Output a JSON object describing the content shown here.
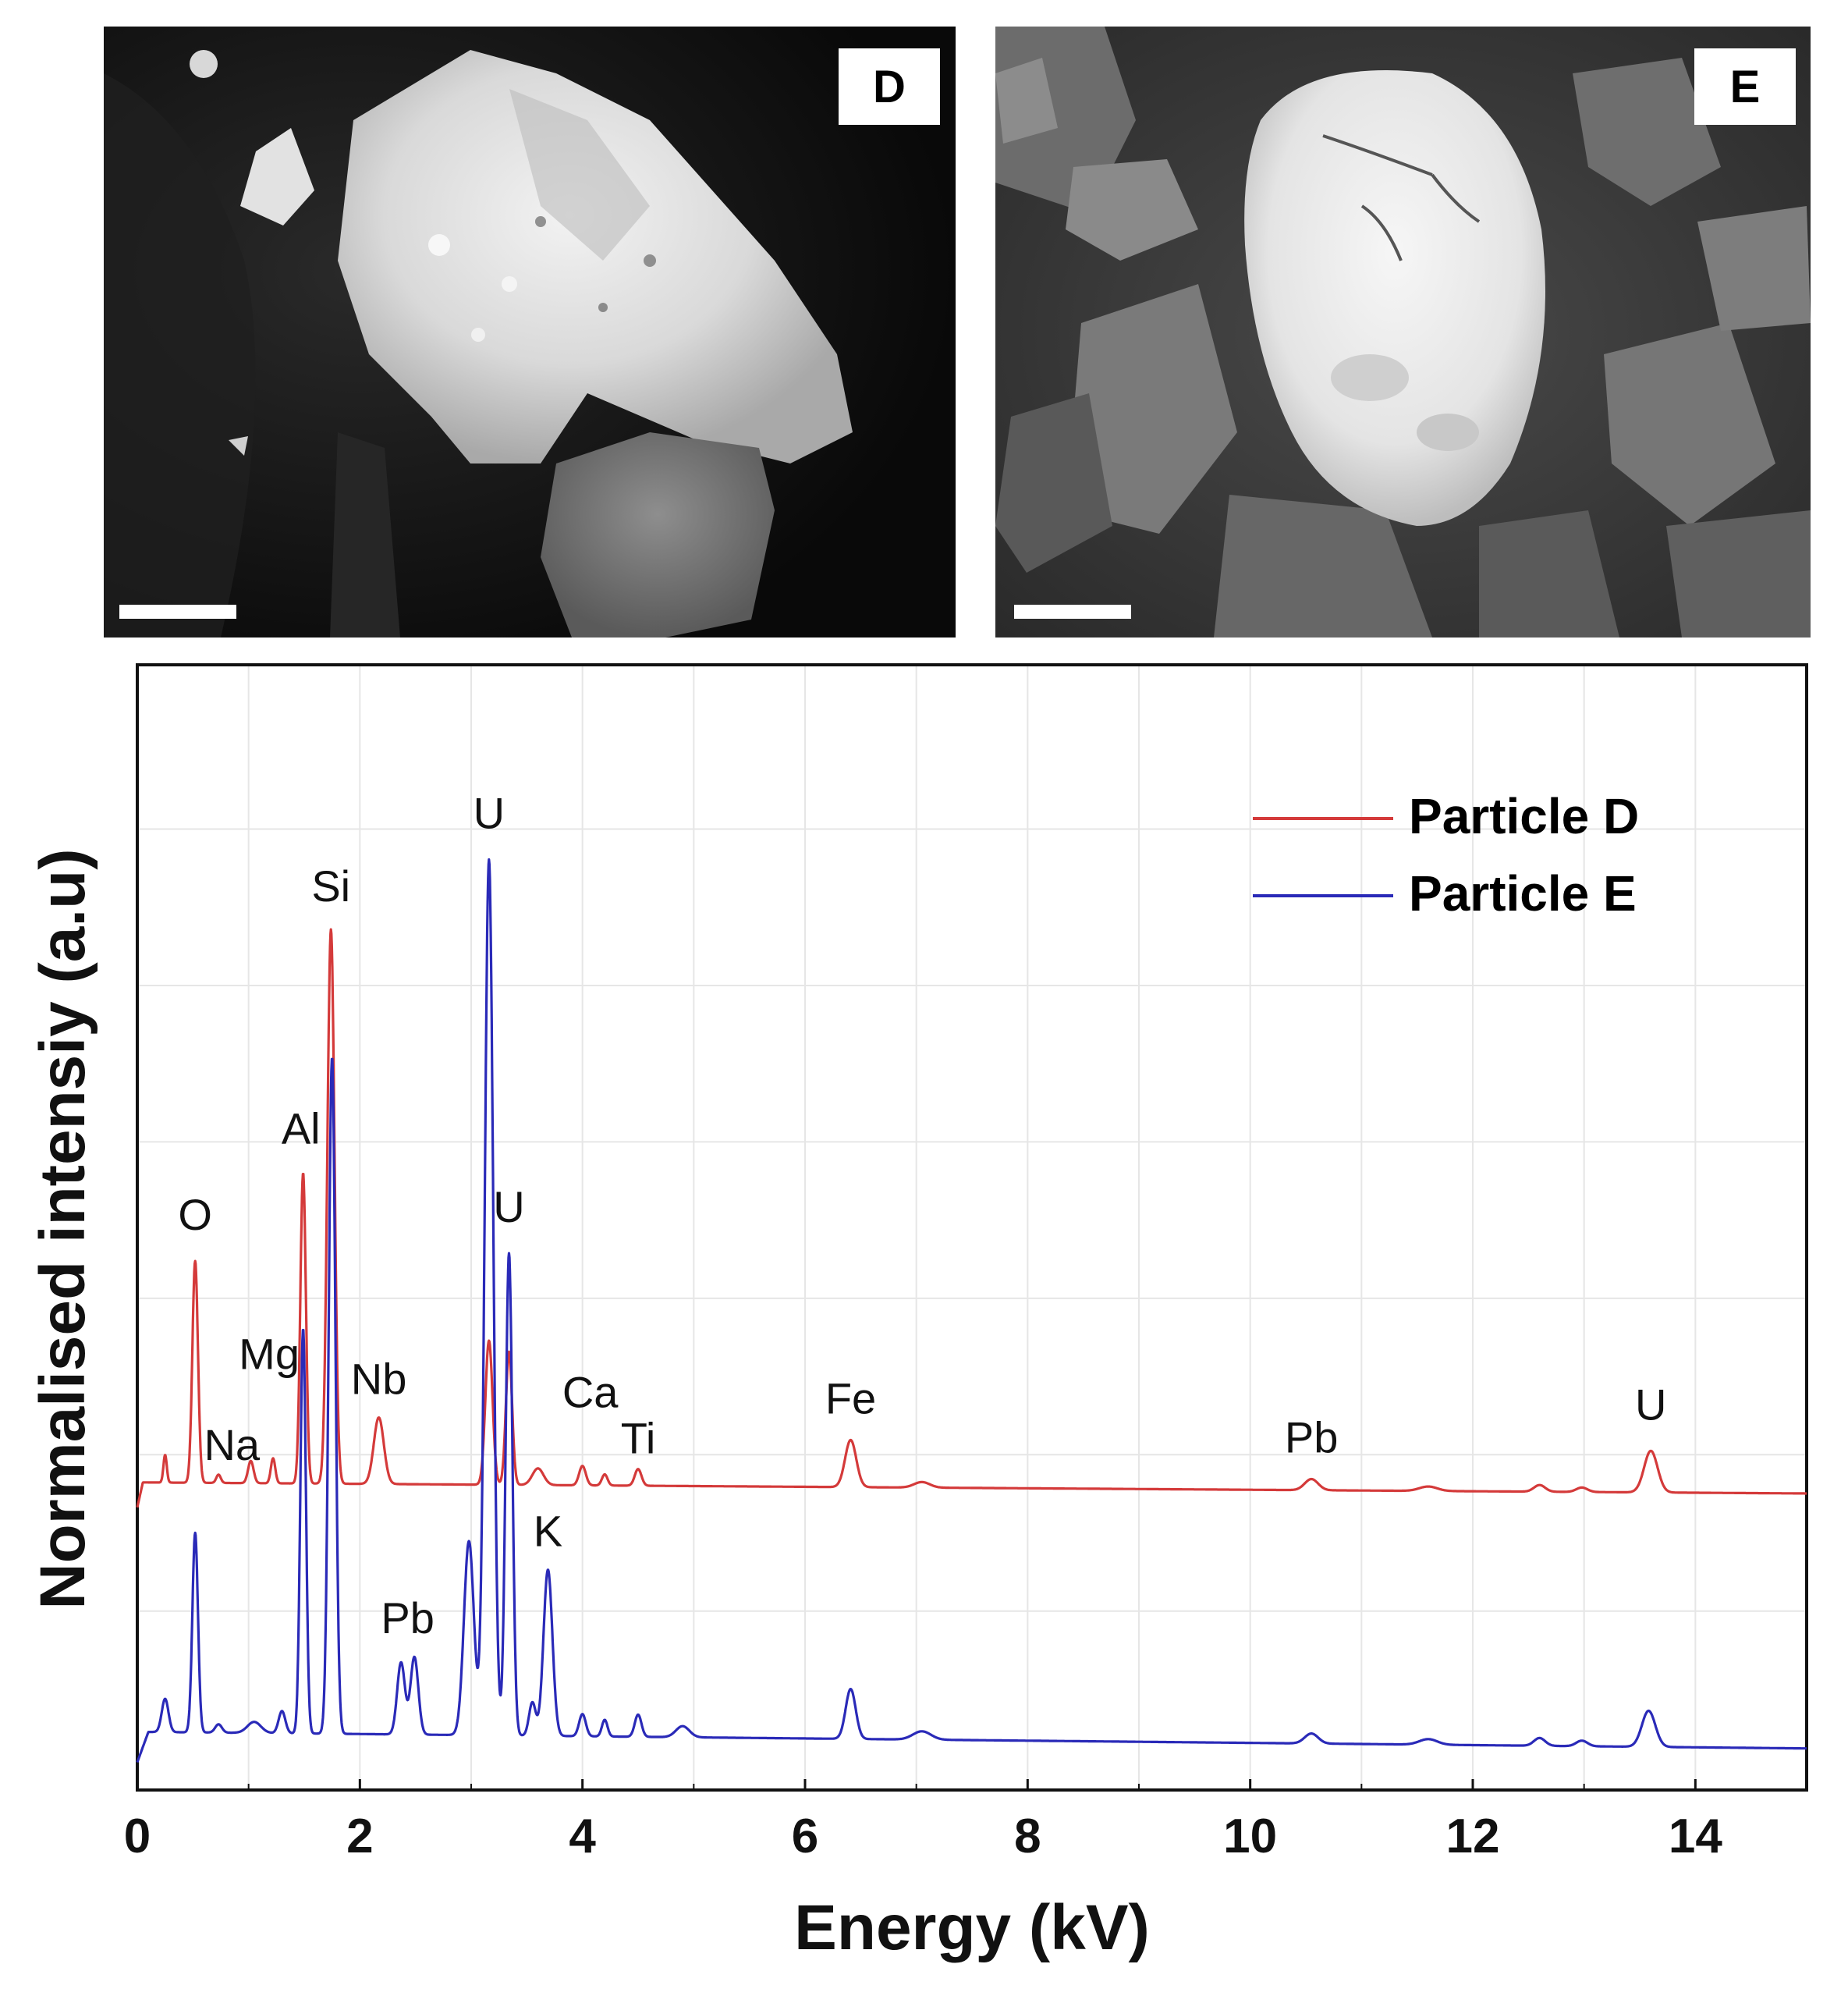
{
  "images": [
    {
      "panel_label": "D",
      "description": "SEM image of particle D with scale bar"
    },
    {
      "panel_label": "E",
      "description": "SEM image of particle E with scale bar"
    }
  ],
  "chart_data": {
    "type": "line",
    "title": "",
    "xlabel": "Energy (kV)",
    "ylabel": "Normalised intensiy (a.u)",
    "xlim": [
      0,
      15
    ],
    "x_ticks": [
      "0",
      "2",
      "4",
      "6",
      "8",
      "10",
      "12",
      "14"
    ],
    "x_tick_values": [
      0,
      2,
      4,
      6,
      8,
      10,
      12,
      14
    ],
    "y_tick_labels_shown": false,
    "grid": true,
    "legend_position": "top-right",
    "colors": {
      "particle_d": "#d43a3a",
      "particle_e": "#2a2ab8"
    },
    "series": [
      {
        "name": "Particle D",
        "key": "particle_d",
        "baseline": 0.045,
        "baseline_end": 0.025,
        "onset": 0.05,
        "peaks": [
          [
            0.25,
            0.05,
            0.015
          ],
          [
            0.52,
            0.4,
            0.025
          ],
          [
            0.73,
            0.015,
            0.02
          ],
          [
            1.02,
            0.04,
            0.025
          ],
          [
            1.22,
            0.045,
            0.02
          ],
          [
            1.49,
            0.56,
            0.025
          ],
          [
            1.74,
            1.0,
            0.032
          ],
          [
            2.17,
            0.12,
            0.045
          ],
          [
            3.16,
            0.26,
            0.032
          ],
          [
            3.34,
            0.24,
            0.028
          ],
          [
            3.6,
            0.03,
            0.05
          ],
          [
            4.0,
            0.035,
            0.03
          ],
          [
            4.2,
            0.02,
            0.025
          ],
          [
            4.5,
            0.03,
            0.03
          ],
          [
            6.41,
            0.085,
            0.05
          ],
          [
            7.05,
            0.01,
            0.07
          ],
          [
            10.55,
            0.02,
            0.06
          ],
          [
            11.6,
            0.008,
            0.08
          ],
          [
            12.6,
            0.012,
            0.05
          ],
          [
            12.98,
            0.008,
            0.05
          ],
          [
            13.6,
            0.075,
            0.06
          ]
        ],
        "label_values": {
          "U_3.16": 0.26,
          "U_13.6": 0.075
        }
      },
      {
        "name": "Particle E",
        "key": "particle_e",
        "baseline": 0.055,
        "baseline_end": 0.025,
        "onset": 0.1,
        "peaks": [
          [
            0.25,
            0.06,
            0.03
          ],
          [
            0.52,
            0.36,
            0.025
          ],
          [
            0.73,
            0.015,
            0.03
          ],
          [
            1.05,
            0.02,
            0.06
          ],
          [
            1.3,
            0.04,
            0.03
          ],
          [
            1.49,
            0.73,
            0.025
          ],
          [
            1.75,
            1.22,
            0.03
          ],
          [
            2.37,
            0.13,
            0.035
          ],
          [
            2.49,
            0.14,
            0.035
          ],
          [
            2.98,
            0.35,
            0.045
          ],
          [
            3.16,
            1.58,
            0.038
          ],
          [
            3.34,
            0.87,
            0.03
          ],
          [
            3.55,
            0.06,
            0.03
          ],
          [
            3.69,
            0.3,
            0.04
          ],
          [
            4.0,
            0.04,
            0.03
          ],
          [
            4.2,
            0.03,
            0.025
          ],
          [
            4.5,
            0.04,
            0.03
          ],
          [
            4.9,
            0.02,
            0.06
          ],
          [
            6.41,
            0.09,
            0.045
          ],
          [
            7.05,
            0.015,
            0.08
          ],
          [
            10.55,
            0.018,
            0.06
          ],
          [
            11.6,
            0.01,
            0.08
          ],
          [
            12.6,
            0.014,
            0.05
          ],
          [
            12.98,
            0.01,
            0.05
          ],
          [
            13.58,
            0.065,
            0.06
          ]
        ]
      }
    ],
    "y_range_display": [
      -0.05,
      1.98
    ],
    "offset_particle_d": 0.46,
    "annotations": [
      {
        "text": "O",
        "series": "particle_d",
        "x": 0.52
      },
      {
        "text": "Na",
        "series": "particle_d",
        "x": 0.92
      },
      {
        "text": "Mg",
        "series": "particle_d",
        "x": 1.08
      },
      {
        "text": "Al",
        "series": "particle_d",
        "x": 1.47
      },
      {
        "text": "Si",
        "series": "particle_d",
        "x": 1.74
      },
      {
        "text": "Nb",
        "series": "particle_d",
        "x": 2.17
      },
      {
        "text": "U",
        "series": "particle_e",
        "x": 3.16
      },
      {
        "text": "U",
        "series": "particle_e",
        "x": 3.34
      },
      {
        "text": "Ca",
        "series": "particle_d",
        "x": 4.07
      },
      {
        "text": "Ti",
        "series": "particle_d",
        "x": 4.5
      },
      {
        "text": "Fe",
        "series": "particle_d",
        "x": 6.41
      },
      {
        "text": "Pb",
        "series": "particle_d",
        "x": 10.55
      },
      {
        "text": "U",
        "series": "particle_d",
        "x": 13.6
      },
      {
        "text": "Pb",
        "series": "particle_e",
        "x": 2.43
      },
      {
        "text": "K",
        "series": "particle_e",
        "x": 3.69
      }
    ]
  }
}
